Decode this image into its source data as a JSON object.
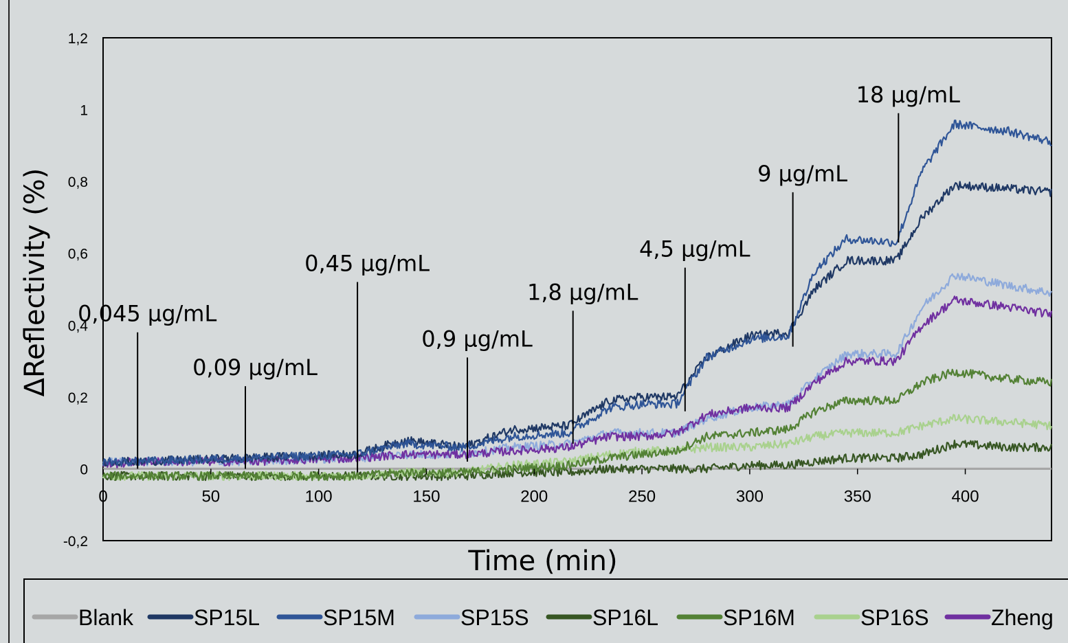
{
  "chart_data": {
    "type": "line",
    "title": "",
    "xlabel": "Time (min)",
    "ylabel": "ΔReflectivity (%)",
    "xlim": [
      0,
      440
    ],
    "ylim": [
      -0.2,
      1.2
    ],
    "x_ticks": [
      "0",
      "50",
      "100",
      "150",
      "200",
      "250",
      "300",
      "350",
      "400"
    ],
    "y_ticks": [
      "1,2",
      "1",
      "0,8",
      "0,6",
      "0,4",
      "0,2",
      "0",
      "-0,2"
    ],
    "grid": false,
    "legend_position": "bottom",
    "x": [
      0,
      15,
      65,
      117,
      140,
      167,
      190,
      216,
      235,
      250,
      266,
      280,
      300,
      318,
      330,
      345,
      368,
      380,
      395,
      420,
      440
    ],
    "series": [
      {
        "name": "Blank",
        "color": "#a6a6a6",
        "values": [
          0,
          0,
          0,
          0,
          0,
          0,
          0,
          0,
          0,
          0,
          0,
          0,
          0,
          0,
          0,
          0,
          0,
          0,
          0,
          0,
          0
        ]
      },
      {
        "name": "SP15L",
        "color": "#1f3864",
        "values": [
          0.02,
          0.02,
          0.03,
          0.04,
          0.08,
          0.06,
          0.11,
          0.12,
          0.19,
          0.2,
          0.2,
          0.31,
          0.37,
          0.38,
          0.5,
          0.58,
          0.58,
          0.7,
          0.79,
          0.78,
          0.77
        ]
      },
      {
        "name": "SP15M",
        "color": "#2f5597",
        "values": [
          0.02,
          0.02,
          0.03,
          0.04,
          0.07,
          0.06,
          0.09,
          0.1,
          0.17,
          0.18,
          0.18,
          0.31,
          0.36,
          0.37,
          0.55,
          0.64,
          0.63,
          0.83,
          0.96,
          0.94,
          0.91
        ]
      },
      {
        "name": "SP15S",
        "color": "#8eaadb",
        "values": [
          0.02,
          0.02,
          0.02,
          0.03,
          0.04,
          0.04,
          0.06,
          0.07,
          0.1,
          0.1,
          0.1,
          0.14,
          0.17,
          0.18,
          0.25,
          0.32,
          0.32,
          0.45,
          0.54,
          0.51,
          0.49
        ]
      },
      {
        "name": "SP16L",
        "color": "#375623",
        "values": [
          -0.02,
          -0.02,
          -0.02,
          -0.02,
          -0.02,
          -0.02,
          -0.01,
          -0.01,
          0,
          0,
          0,
          0,
          0.01,
          0.01,
          0.02,
          0.03,
          0.03,
          0.04,
          0.07,
          0.06,
          0.06
        ]
      },
      {
        "name": "SP16M",
        "color": "#538135",
        "values": [
          -0.02,
          -0.02,
          -0.02,
          -0.02,
          -0.01,
          -0.01,
          0,
          0.01,
          0.03,
          0.04,
          0.05,
          0.09,
          0.1,
          0.11,
          0.16,
          0.19,
          0.19,
          0.24,
          0.27,
          0.25,
          0.24
        ]
      },
      {
        "name": "SP16S",
        "color": "#a9d18e",
        "values": [
          -0.02,
          -0.02,
          -0.02,
          -0.02,
          -0.01,
          -0.01,
          0.01,
          0.02,
          0.04,
          0.05,
          0.05,
          0.06,
          0.06,
          0.07,
          0.09,
          0.1,
          0.1,
          0.12,
          0.14,
          0.13,
          0.12
        ]
      },
      {
        "name": "Zheng",
        "color": "#7030a0",
        "values": [
          0.01,
          0.02,
          0.02,
          0.03,
          0.04,
          0.04,
          0.05,
          0.06,
          0.09,
          0.09,
          0.1,
          0.15,
          0.17,
          0.17,
          0.24,
          0.3,
          0.3,
          0.4,
          0.47,
          0.45,
          0.43
        ]
      }
    ],
    "annotations": [
      {
        "text": "0,045 µg/mL",
        "x": 16,
        "y_bottom": 0.0,
        "y_top": 0.38
      },
      {
        "text": "0,09 µg/mL",
        "x": 66,
        "y_bottom": 0.0,
        "y_top": 0.23
      },
      {
        "text": "0,45 µg/mL",
        "x": 118,
        "y_bottom": -0.01,
        "y_top": 0.52
      },
      {
        "text": "0,9 µg/mL",
        "x": 169,
        "y_bottom": 0.02,
        "y_top": 0.31
      },
      {
        "text": "1,8 µg/mL",
        "x": 218,
        "y_bottom": 0.07,
        "y_top": 0.44
      },
      {
        "text": "4,5 µg/mL",
        "x": 270,
        "y_bottom": 0.16,
        "y_top": 0.56
      },
      {
        "text": "9 µg/mL",
        "x": 320,
        "y_bottom": 0.34,
        "y_top": 0.77
      },
      {
        "text": "18 µg/mL",
        "x": 369,
        "y_bottom": 0.63,
        "y_top": 0.99
      }
    ]
  }
}
